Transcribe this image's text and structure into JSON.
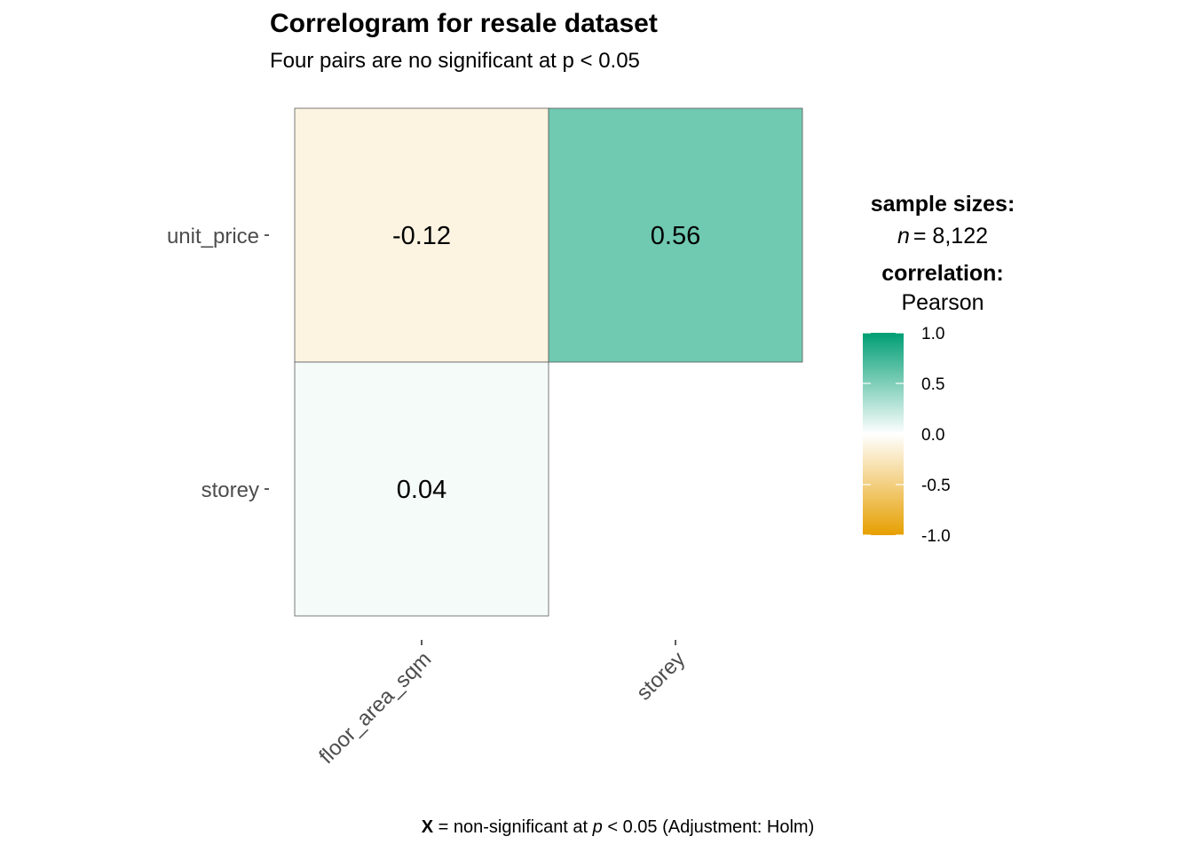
{
  "chart_data": {
    "type": "heatmap",
    "title": "Correlogram for resale dataset",
    "subtitle": "Four pairs are no significant at p < 0.05",
    "x_categories": [
      "floor_area_sqm",
      "storey"
    ],
    "y_categories": [
      "unit_price",
      "storey"
    ],
    "cells": [
      {
        "x": "floor_area_sqm",
        "y": "unit_price",
        "value": -0.12,
        "label": "-0.12"
      },
      {
        "x": "storey",
        "y": "unit_price",
        "value": 0.56,
        "label": "0.56"
      },
      {
        "x": "floor_area_sqm",
        "y": "storey",
        "value": 0.04,
        "label": "0.04"
      }
    ],
    "legend": {
      "sample_heading": "sample sizes:",
      "sample_n_symbol": "n",
      "sample_n_value": "= 8,122",
      "correlation_heading": "correlation:",
      "correlation_method": "Pearson",
      "scale_limits": [
        -1.0,
        1.0
      ],
      "scale_ticks": [
        1.0,
        0.5,
        0.0,
        -0.5,
        -1.0
      ],
      "scale_tick_labels": [
        "1.0",
        "0.5",
        "0.0",
        "-0.5",
        "-1.0"
      ],
      "colors": {
        "low": "#E69F00",
        "mid": "#FFFFFF",
        "high": "#009E73"
      }
    },
    "caption": {
      "bold_part": "X",
      "text_before_p": " = non-significant at ",
      "p_symbol": "p",
      "text_after_p": " < 0.05 (Adjustment: Holm)"
    }
  }
}
